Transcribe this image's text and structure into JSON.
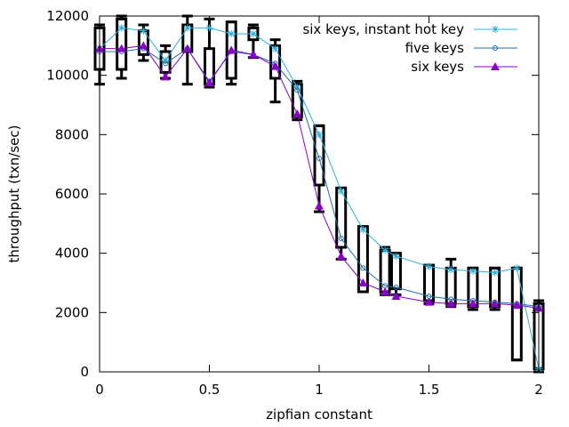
{
  "chart_data": {
    "type": "line",
    "title": "",
    "xlabel": "zipfian constant",
    "ylabel": "throughput (txn/sec)",
    "xlim": [
      0,
      2
    ],
    "ylim": [
      0,
      12000
    ],
    "x_ticks": [
      0,
      0.5,
      1,
      1.5,
      2
    ],
    "x_tick_labels": [
      "0",
      "0.5",
      "1",
      "1.5",
      "2"
    ],
    "y_ticks": [
      0,
      2000,
      4000,
      6000,
      8000,
      10000,
      12000
    ],
    "y_tick_labels": [
      "0",
      "2000",
      "4000",
      "6000",
      "8000",
      "10000",
      "12000"
    ],
    "legend_position": "top-right",
    "grid": false,
    "series": [
      {
        "name": "six keys, instant hot key",
        "color": "#2bb0d8",
        "marker": "star",
        "points": [
          [
            0,
            10900
          ],
          [
            0.1,
            11600
          ],
          [
            0.2,
            11500
          ],
          [
            0.3,
            10500
          ],
          [
            0.4,
            11600
          ],
          [
            0.5,
            11600
          ],
          [
            0.6,
            11400
          ],
          [
            0.7,
            11400
          ],
          [
            0.8,
            10900
          ],
          [
            0.9,
            9600
          ],
          [
            1.0,
            8000
          ],
          [
            1.1,
            6100
          ],
          [
            1.2,
            4800
          ],
          [
            1.3,
            4100
          ],
          [
            1.35,
            3900
          ],
          [
            1.5,
            3550
          ],
          [
            1.6,
            3450
          ],
          [
            1.7,
            3400
          ],
          [
            1.8,
            3350
          ],
          [
            1.9,
            3500
          ],
          [
            2.0,
            100
          ]
        ]
      },
      {
        "name": "five keys",
        "color": "#1f6da8",
        "marker": "circle",
        "points": [
          [
            0,
            10800
          ],
          [
            0.1,
            10800
          ],
          [
            0.2,
            10900
          ],
          [
            0.3,
            10400
          ],
          [
            0.4,
            10900
          ],
          [
            0.5,
            9800
          ],
          [
            0.6,
            10800
          ],
          [
            0.7,
            10700
          ],
          [
            0.8,
            10400
          ],
          [
            0.9,
            9500
          ],
          [
            1.0,
            7200
          ],
          [
            1.1,
            4500
          ],
          [
            1.2,
            3500
          ],
          [
            1.3,
            2900
          ],
          [
            1.35,
            2850
          ],
          [
            1.5,
            2550
          ],
          [
            1.6,
            2450
          ],
          [
            1.7,
            2400
          ],
          [
            1.8,
            2350
          ],
          [
            1.9,
            2300
          ],
          [
            2.0,
            2200
          ]
        ]
      },
      {
        "name": "six keys",
        "color": "#8b00c8",
        "marker": "triangle",
        "points": [
          [
            0,
            10900
          ],
          [
            0.1,
            10900
          ],
          [
            0.2,
            11000
          ],
          [
            0.3,
            9950
          ],
          [
            0.4,
            10900
          ],
          [
            0.5,
            9750
          ],
          [
            0.6,
            10850
          ],
          [
            0.7,
            10700
          ],
          [
            0.8,
            10300
          ],
          [
            0.9,
            8700
          ],
          [
            1.0,
            5600
          ],
          [
            1.1,
            3900
          ],
          [
            1.2,
            3000
          ],
          [
            1.3,
            2700
          ],
          [
            1.35,
            2550
          ],
          [
            1.5,
            2350
          ],
          [
            1.6,
            2300
          ],
          [
            1.7,
            2300
          ],
          [
            1.8,
            2300
          ],
          [
            1.9,
            2250
          ],
          [
            2.0,
            2150
          ]
        ]
      }
    ],
    "boxes": [
      {
        "x": 0,
        "low": 9700,
        "q1": 10200,
        "q3": 11600,
        "high": 11700
      },
      {
        "x": 0.1,
        "low": 9900,
        "q1": 10200,
        "q3": 11900,
        "high": 12000
      },
      {
        "x": 0.2,
        "low": 10500,
        "q1": 10700,
        "q3": 11500,
        "high": 11700
      },
      {
        "x": 0.3,
        "low": 9900,
        "q1": 10100,
        "q3": 10800,
        "high": 11000
      },
      {
        "x": 0.4,
        "low": 9700,
        "q1": 10800,
        "q3": 11700,
        "high": 12000
      },
      {
        "x": 0.5,
        "low": 9600,
        "q1": 9700,
        "q3": 10900,
        "high": 11900
      },
      {
        "x": 0.6,
        "low": 9700,
        "q1": 9900,
        "q3": 11800,
        "high": 11800
      },
      {
        "x": 0.7,
        "low": 10600,
        "q1": 11200,
        "q3": 11600,
        "high": 11700
      },
      {
        "x": 0.8,
        "low": 9100,
        "q1": 9900,
        "q3": 11000,
        "high": 11200
      },
      {
        "x": 0.9,
        "low": 8500,
        "q1": 8600,
        "q3": 9700,
        "high": 9800
      },
      {
        "x": 1.0,
        "low": 5400,
        "q1": 6300,
        "q3": 8300,
        "high": 8300
      },
      {
        "x": 1.1,
        "low": 3800,
        "q1": 4200,
        "q3": 6200,
        "high": 6200
      },
      {
        "x": 1.2,
        "low": 2700,
        "q1": 2700,
        "q3": 4900,
        "high": 4900
      },
      {
        "x": 1.3,
        "low": 2600,
        "q1": 2700,
        "q3": 4100,
        "high": 4200
      },
      {
        "x": 1.35,
        "low": 2600,
        "q1": 2800,
        "q3": 4000,
        "high": 4000
      },
      {
        "x": 1.5,
        "low": 2300,
        "q1": 2400,
        "q3": 3600,
        "high": 3600
      },
      {
        "x": 1.6,
        "low": 2200,
        "q1": 2300,
        "q3": 3500,
        "high": 3800
      },
      {
        "x": 1.7,
        "low": 2100,
        "q1": 2200,
        "q3": 3500,
        "high": 3500
      },
      {
        "x": 1.8,
        "low": 2100,
        "q1": 2200,
        "q3": 3500,
        "high": 3500
      },
      {
        "x": 1.9,
        "low": 400,
        "q1": 400,
        "q3": 3500,
        "high": 3500
      },
      {
        "x": 2.0,
        "low": 0,
        "q1": 100,
        "q3": 2300,
        "high": 2400
      }
    ]
  }
}
